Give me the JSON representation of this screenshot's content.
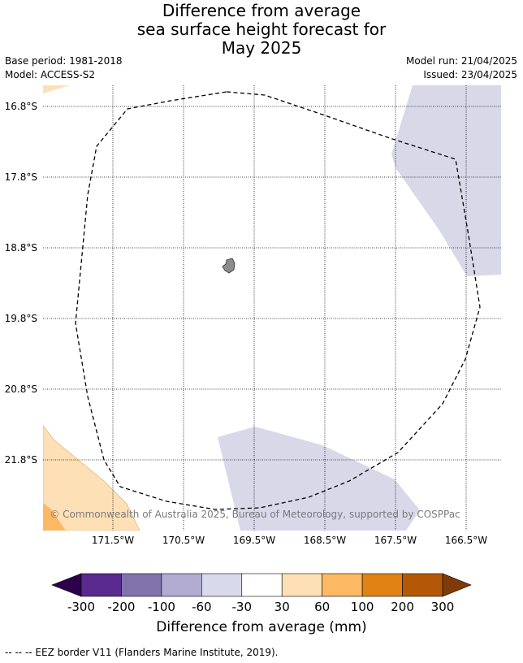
{
  "title": {
    "line1": "Difference from average",
    "line2": "sea surface height forecast for",
    "line3": "May 2025"
  },
  "meta": {
    "base_period": "Base period: 1981-2018",
    "model": "Model: ACCESS-S2",
    "model_run": "Model run: 21/04/2025",
    "issued": "Issued: 23/04/2025"
  },
  "map": {
    "lat_labels": [
      "16.8°S",
      "17.8°S",
      "18.8°S",
      "19.8°S",
      "20.8°S",
      "21.8°S"
    ],
    "lon_labels": [
      "171.5°W",
      "170.5°W",
      "169.5°W",
      "168.5°W",
      "167.5°W",
      "166.5°W"
    ],
    "credit": "© Commonwealth of Australia 2025, Bureau of Meteorology, supported by COSPPac",
    "colors": {
      "land": "#8c8c8c",
      "anomaly_minus_60_to_minus_30": "#d8d8e9",
      "anomaly_30_to_60": "#fee0b6",
      "anomaly_60_to_100": "#fdb863"
    }
  },
  "colorbar": {
    "ticks": [
      "-300",
      "-200",
      "-100",
      "-60",
      "-30",
      "30",
      "60",
      "100",
      "200",
      "300"
    ],
    "colors": [
      "#5a2a8f",
      "#8073ac",
      "#b2abd2",
      "#d8daeb",
      "#ffffff",
      "#fee0b6",
      "#fdb863",
      "#e08214",
      "#b35806"
    ],
    "low_extend_color": "#2d004b",
    "high_extend_color": "#7f3b08",
    "label": "Difference from average (mm)"
  },
  "footnote": "-- -- -- EEZ border V11 (Flanders Marine Institute, 2019)."
}
